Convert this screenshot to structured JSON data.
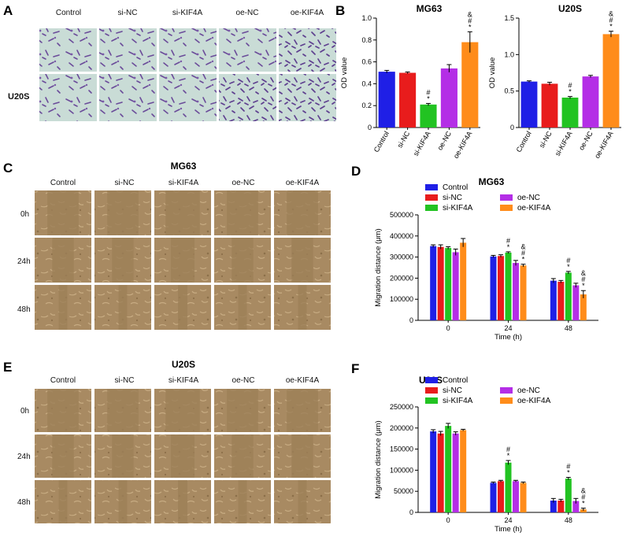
{
  "panels": {
    "A": "A",
    "B": "B",
    "C": "C",
    "D": "D",
    "E": "E",
    "F": "F"
  },
  "panel_A": {
    "columns": [
      "Control",
      "si-NC",
      "si-KIF4A",
      "oe-NC",
      "oe-KIF4A"
    ],
    "row_label": "U20S"
  },
  "panel_C": {
    "title": "MG63",
    "columns": [
      "Control",
      "si-NC",
      "si-KIF4A",
      "oe-NC",
      "oe-KIF4A"
    ],
    "rows": [
      "0h",
      "24h",
      "48h"
    ]
  },
  "panel_E": {
    "title": "U20S",
    "columns": [
      "Control",
      "si-NC",
      "si-KIF4A",
      "oe-NC",
      "oe-KIF4A"
    ],
    "rows": [
      "0h",
      "24h",
      "48h"
    ]
  },
  "colors": {
    "Control": "#1f1fe6",
    "si-NC": "#e81c1c",
    "si-KIF4A": "#22c322",
    "oe-NC": "#b42ee6",
    "oe-KIF4A": "#ff8c1a",
    "crystal_bg": "#c9dcd6",
    "crystal_cell": "#6b4c9a",
    "scratch_bg": "#a88a62",
    "scratch_cell": "#c7ab82"
  },
  "chart_data": [
    {
      "id": "B1",
      "type": "bar",
      "title": "MG63",
      "xlabel": "",
      "ylabel": "OD value",
      "categories": [
        "Control",
        "si-NC",
        "si-KIF4A",
        "oe-NC",
        "oe-KIF4A"
      ],
      "values": [
        0.51,
        0.5,
        0.21,
        0.54,
        0.78
      ],
      "errors": [
        0.012,
        0.008,
        0.01,
        0.035,
        0.095
      ],
      "marks": [
        "",
        "",
        "#\n*",
        "",
        "&\n#\n*"
      ],
      "ylim": [
        0,
        1.0
      ],
      "yticks": [
        0,
        0.2,
        0.4,
        0.6,
        0.8,
        1.0
      ],
      "ytick_labels": [
        "0",
        "0.2",
        "0.4",
        "0.6",
        "0.8",
        "1.0"
      ]
    },
    {
      "id": "B2",
      "type": "bar",
      "title": "U20S",
      "xlabel": "",
      "ylabel": "OD value",
      "categories": [
        "Control",
        "si-NC",
        "si-KIF4A",
        "oe-NC",
        "oe-KIF4A"
      ],
      "values": [
        0.63,
        0.6,
        0.41,
        0.7,
        1.28
      ],
      "errors": [
        0.01,
        0.02,
        0.015,
        0.015,
        0.04
      ],
      "marks": [
        "",
        "",
        "#\n*",
        "",
        "&\n#\n*"
      ],
      "ylim": [
        0,
        1.5
      ],
      "yticks": [
        0,
        0.5,
        1.0,
        1.5
      ],
      "ytick_labels": [
        "0",
        "0.5",
        "1.0",
        "1.5"
      ]
    },
    {
      "id": "D",
      "type": "bar",
      "title": "MG63",
      "xlabel": "Time (h)",
      "ylabel": "Migration distance (μm)",
      "categories": [
        "0",
        "24",
        "48"
      ],
      "series": [
        {
          "name": "Control",
          "values": [
            352000,
            303000,
            188000
          ],
          "errors": [
            6000,
            5000,
            10000
          ],
          "marks": [
            "",
            "",
            ""
          ]
        },
        {
          "name": "si-NC",
          "values": [
            348000,
            305000,
            183000
          ],
          "errors": [
            10000,
            6000,
            6000
          ],
          "marks": [
            "",
            "",
            ""
          ]
        },
        {
          "name": "si-KIF4A",
          "values": [
            343000,
            321000,
            226000
          ],
          "errors": [
            6000,
            4000,
            6000
          ],
          "marks": [
            "",
            "#\n*",
            "#\n*"
          ]
        },
        {
          "name": "oe-NC",
          "values": [
            323000,
            272000,
            166000
          ],
          "errors": [
            15000,
            12000,
            10000
          ],
          "marks": [
            "",
            "",
            ""
          ]
        },
        {
          "name": "oe-KIF4A",
          "values": [
            368000,
            260000,
            123000
          ],
          "errors": [
            20000,
            6000,
            18000
          ],
          "marks": [
            "",
            "&\n#\n*",
            "&\n#\n*"
          ]
        }
      ],
      "ylim": [
        0,
        500000
      ],
      "yticks": [
        0,
        100000,
        200000,
        300000,
        400000,
        500000
      ],
      "ytick_labels": [
        "0",
        "100000",
        "200000",
        "300000",
        "400000",
        "500000"
      ],
      "legend": "top"
    },
    {
      "id": "F",
      "type": "bar",
      "title": "U20S",
      "xlabel": "Time (h)",
      "ylabel": "Migration distance (μm)",
      "categories": [
        "0",
        "24",
        "48"
      ],
      "series": [
        {
          "name": "Control",
          "values": [
            192000,
            70000,
            28000
          ],
          "errors": [
            4000,
            2000,
            5000
          ],
          "marks": [
            "",
            "",
            ""
          ]
        },
        {
          "name": "si-NC",
          "values": [
            187000,
            74000,
            28000
          ],
          "errors": [
            5000,
            2000,
            3000
          ],
          "marks": [
            "",
            "",
            ""
          ]
        },
        {
          "name": "si-KIF4A",
          "values": [
            205000,
            118000,
            80000
          ],
          "errors": [
            6000,
            5000,
            3000
          ],
          "marks": [
            "",
            "#\n*",
            "#\n*"
          ]
        },
        {
          "name": "oe-NC",
          "values": [
            187000,
            74000,
            27000
          ],
          "errors": [
            4000,
            2000,
            6000
          ],
          "marks": [
            "",
            "",
            ""
          ]
        },
        {
          "name": "oe-KIF4A",
          "values": [
            195000,
            70000,
            7000
          ],
          "errors": [
            2000,
            2000,
            3000
          ],
          "marks": [
            "",
            "",
            "&\n#\n*"
          ]
        }
      ],
      "ylim": [
        0,
        250000
      ],
      "yticks": [
        0,
        50000,
        100000,
        150000,
        200000,
        250000
      ],
      "ytick_labels": [
        "0",
        "50000",
        "100000",
        "150000",
        "200000",
        "250000"
      ],
      "legend": "top"
    }
  ]
}
